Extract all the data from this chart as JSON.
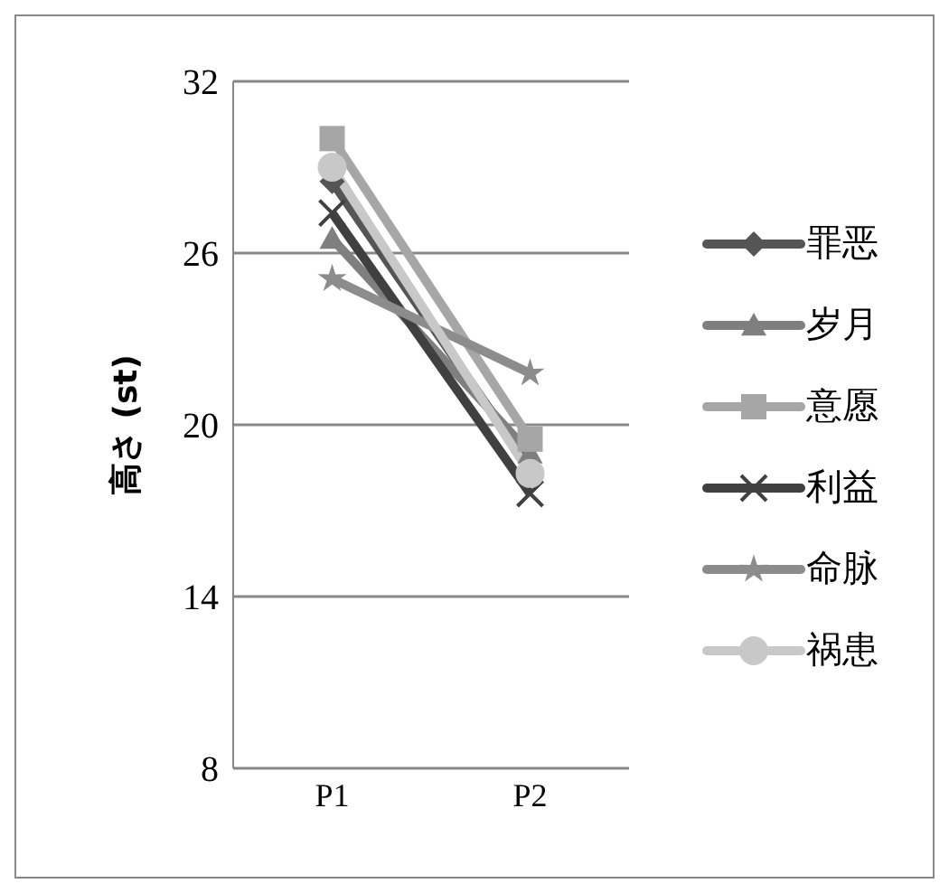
{
  "chart_data": {
    "type": "line",
    "ylabel": "高さ (st)",
    "categories": [
      "P1",
      "P2"
    ],
    "ylim": [
      8,
      32
    ],
    "yticks": [
      8,
      14,
      20,
      26,
      32
    ],
    "grid": "y",
    "legend": "right",
    "series": [
      {
        "name": "罪恶",
        "color": "#555555",
        "marker": "diamond",
        "values": [
          28.5,
          18.5
        ]
      },
      {
        "name": "岁月",
        "color": "#7f7f7f",
        "marker": "triangle",
        "values": [
          26.5,
          19
        ]
      },
      {
        "name": "意愿",
        "color": "#a6a6a6",
        "marker": "square",
        "values": [
          30,
          19.5
        ]
      },
      {
        "name": "利益",
        "color": "#404040",
        "marker": "cross",
        "values": [
          27.4,
          17.6
        ]
      },
      {
        "name": "命脉",
        "color": "#8c8c8c",
        "marker": "star",
        "values": [
          25.1,
          21.8
        ]
      },
      {
        "name": "祸患",
        "color": "#c8c8c8",
        "marker": "circle",
        "values": [
          29,
          18.3
        ]
      }
    ]
  }
}
